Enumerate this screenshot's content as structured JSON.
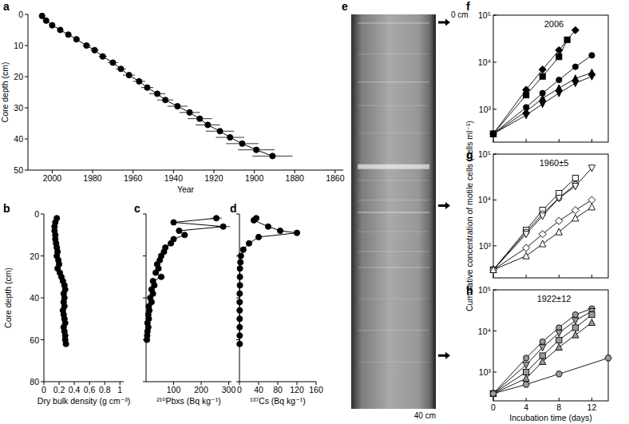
{
  "chart_data": [
    {
      "type": "line",
      "panel": "a",
      "x_label": "Year",
      "y_label": "Core depth (cm)",
      "xlim": [
        2012,
        1856
      ],
      "xticks": [
        2000,
        1980,
        1960,
        1940,
        1920,
        1900,
        1880,
        1860
      ],
      "ylim": [
        50,
        0
      ],
      "yticks": [
        0,
        10,
        20,
        30,
        40,
        50
      ],
      "marker": "circle",
      "line_style": "solid",
      "color": "#000000",
      "x": [
        2005,
        2003,
        2000,
        1996,
        1992,
        1988,
        1983,
        1979,
        1975,
        1970,
        1966,
        1962,
        1957,
        1953,
        1948,
        1944,
        1938,
        1932,
        1927,
        1923,
        1917,
        1912,
        1906,
        1899,
        1891
      ],
      "values": [
        0.5,
        2,
        3.5,
        5,
        6.5,
        8,
        10,
        11.5,
        13.5,
        15.5,
        17.5,
        19.5,
        21.5,
        23.5,
        25.5,
        27.5,
        29.5,
        31.5,
        33.5,
        35.5,
        37.5,
        39.5,
        41.5,
        43.5,
        45.5
      ],
      "x_errors": [
        0.5,
        1,
        1,
        1,
        1.5,
        1.5,
        2,
        2,
        2,
        2.5,
        2.5,
        3,
        3,
        3,
        4,
        4,
        5,
        5,
        6,
        6,
        7,
        7,
        8,
        9,
        10
      ]
    },
    {
      "type": "line",
      "panel": "b",
      "x_label": "Dry bulk density (g cm⁻³)",
      "y_label": "Core depth (cm)",
      "xlim": [
        0,
        1.05
      ],
      "xticks": [
        0,
        0.2,
        0.4,
        0.6,
        0.8,
        1
      ],
      "ylim": [
        80,
        0
      ],
      "yticks": [
        0,
        20,
        40,
        60,
        80
      ],
      "marker": "circle",
      "line_style": "solid",
      "color": "#000000",
      "x": [
        0.17,
        0.15,
        0.14,
        0.14,
        0.15,
        0.15,
        0.16,
        0.17,
        0.18,
        0.17,
        0.19,
        0.2,
        0.18,
        0.21,
        0.23,
        0.25,
        0.27,
        0.28,
        0.26,
        0.27,
        0.26,
        0.27,
        0.25,
        0.26,
        0.27,
        0.28,
        0.26,
        0.27,
        0.28,
        0.28,
        0.29
      ],
      "values": [
        2,
        4,
        6,
        8,
        10,
        12,
        14,
        16,
        18,
        20,
        22,
        24,
        26,
        28,
        30,
        32,
        34,
        36,
        38,
        40,
        42,
        44,
        46,
        48,
        50,
        52,
        54,
        56,
        58,
        60,
        62
      ]
    },
    {
      "type": "line",
      "panel": "c",
      "x_label": "²¹⁰Pbxs (Bq kg⁻¹)",
      "xlim": [
        0,
        310
      ],
      "xticks": [
        100,
        200,
        300
      ],
      "ylim": [
        80,
        0
      ],
      "yticks": [
        0,
        20,
        40,
        60,
        80
      ],
      "tick_labels": "x",
      "marker": "circle",
      "line_style": "solid",
      "color": "#000000",
      "x": [
        255,
        100,
        280,
        120,
        140,
        100,
        90,
        70,
        65,
        55,
        50,
        40,
        45,
        35,
        55,
        25,
        30,
        20,
        25,
        15,
        20,
        10,
        12,
        8,
        10,
        5,
        8,
        5,
        4,
        3
      ],
      "values": [
        2,
        4,
        6,
        8,
        10,
        12,
        14,
        16,
        18,
        20,
        22,
        24,
        26,
        28,
        30,
        32,
        34,
        36,
        38,
        40,
        42,
        44,
        46,
        48,
        50,
        52,
        54,
        56,
        58,
        60
      ],
      "x_errors": [
        20,
        10,
        25,
        12,
        12,
        10,
        10,
        8,
        8,
        8,
        8,
        6,
        8,
        6,
        12,
        6,
        6,
        5,
        6,
        5,
        5,
        5,
        5,
        4,
        4,
        4,
        4,
        4,
        3,
        3
      ]
    },
    {
      "type": "line",
      "panel": "d",
      "x_label": "¹³⁷Cs (Bq kg⁻¹)",
      "xlim": [
        0,
        160
      ],
      "xticks": [
        0,
        40,
        80,
        120,
        160
      ],
      "ylim": [
        80,
        0
      ],
      "yticks": [
        0,
        20,
        40,
        60,
        80
      ],
      "tick_labels": "x",
      "marker": "circle",
      "line_style": "solid",
      "color": "#000000",
      "x": [
        35,
        30,
        60,
        85,
        120,
        40,
        20,
        8,
        3,
        2,
        1,
        1,
        1,
        0.5,
        0.5,
        0.5,
        0.5,
        0.5,
        0.5,
        0.5
      ],
      "values": [
        2,
        3,
        6,
        8,
        9,
        11,
        14,
        17,
        20,
        23,
        26,
        30,
        34,
        38,
        42,
        46,
        50,
        54,
        58,
        62
      ]
    },
    {
      "type": "image",
      "panel": "e",
      "top_label": "0 cm",
      "bottom_label": "40 cm",
      "ylim": [
        40,
        0
      ],
      "arrows": [
        0.8,
        19.4,
        34.6
      ]
    },
    {
      "type": "line",
      "panel": "f",
      "title": "2006",
      "log": "y",
      "tick_labels": "y",
      "xlim": [
        0,
        14
      ],
      "xticks": [
        0,
        4,
        8,
        12
      ],
      "ylim": [
        200,
        100000
      ],
      "yticks": [
        {
          "value": 1000,
          "label": "10³"
        },
        {
          "value": 10000,
          "label": "10⁴"
        },
        {
          "value": 100000,
          "label": "10⁵"
        }
      ],
      "series": [
        {
          "color": "#000000",
          "marker": "diamond",
          "x": [
            0,
            4,
            6,
            8,
            10
          ],
          "values": [
            300,
            2600,
            7000,
            18000,
            48000
          ]
        },
        {
          "color": "#000000",
          "marker": "square",
          "x": [
            0,
            4,
            6,
            8,
            9
          ],
          "values": [
            300,
            2000,
            5000,
            13000,
            30000
          ]
        },
        {
          "color": "#000000",
          "marker": "circle",
          "x": [
            0,
            4,
            6,
            8,
            10,
            12
          ],
          "values": [
            300,
            1100,
            2200,
            4200,
            8000,
            14000
          ]
        },
        {
          "color": "#000000",
          "marker": "triangle-up",
          "x": [
            0,
            4,
            6,
            8,
            10,
            12
          ],
          "values": [
            300,
            900,
            1700,
            2800,
            4500,
            6000
          ]
        },
        {
          "color": "#000000",
          "marker": "triangle-down",
          "x": [
            0,
            4,
            6,
            8,
            10,
            12
          ],
          "values": [
            300,
            750,
            1300,
            2200,
            3600,
            5000
          ]
        }
      ]
    },
    {
      "type": "line",
      "panel": "g",
      "title": "1960±5",
      "log": "y",
      "tick_labels": "y",
      "y_label": "Cumulative concentration of motile cells (cells ml⁻¹)",
      "xlim": [
        0,
        14
      ],
      "xticks": [
        0,
        4,
        8,
        12
      ],
      "ylim": [
        200,
        100000
      ],
      "yticks": [
        {
          "value": 1000,
          "label": "10³"
        },
        {
          "value": 10000,
          "label": "10⁴"
        },
        {
          "value": 100000,
          "label": "10⁵"
        }
      ],
      "series": [
        {
          "color": "#ffffff",
          "marker": "square",
          "x": [
            0,
            4,
            6,
            8,
            10
          ],
          "values": [
            300,
            2200,
            6000,
            14000,
            30000
          ]
        },
        {
          "color": "#ffffff",
          "marker": "circle",
          "x": [
            0,
            4,
            6,
            8,
            10
          ],
          "values": [
            300,
            2000,
            5000,
            11000,
            22000
          ]
        },
        {
          "color": "#ffffff",
          "marker": "triangle-down",
          "x": [
            0,
            4,
            6,
            8,
            10,
            12
          ],
          "values": [
            300,
            1800,
            4500,
            11000,
            20000,
            50000
          ]
        },
        {
          "color": "#ffffff",
          "marker": "diamond",
          "x": [
            0,
            4,
            6,
            8,
            10,
            12
          ],
          "values": [
            300,
            900,
            1800,
            3500,
            6000,
            10000
          ]
        },
        {
          "color": "#ffffff",
          "marker": "triangle-up",
          "x": [
            0,
            4,
            6,
            8,
            10,
            12
          ],
          "values": [
            300,
            600,
            1100,
            2000,
            4000,
            7000
          ]
        }
      ]
    },
    {
      "type": "line",
      "panel": "h",
      "title": "1922±12",
      "log": "y",
      "x_label": "Incubation time (days)",
      "xlim": [
        0,
        14
      ],
      "xticks": [
        0,
        4,
        8,
        12
      ],
      "ylim": [
        200,
        100000
      ],
      "yticks": [
        {
          "value": 1000,
          "label": "10³"
        },
        {
          "value": 10000,
          "label": "10⁴"
        },
        {
          "value": 100000,
          "label": "10⁵"
        }
      ],
      "series": [
        {
          "color": "#999999",
          "marker": "circle",
          "x": [
            0,
            4,
            6,
            8,
            10,
            12
          ],
          "values": [
            300,
            2200,
            5500,
            12000,
            25000,
            35000
          ]
        },
        {
          "color": "#999999",
          "marker": "triangle-down",
          "x": [
            0,
            4,
            6,
            8,
            10,
            12
          ],
          "values": [
            300,
            1500,
            4000,
            9000,
            18000,
            30000
          ]
        },
        {
          "color": "#999999",
          "marker": "square",
          "x": [
            0,
            4,
            6,
            8,
            10,
            12
          ],
          "values": [
            300,
            1000,
            2500,
            6000,
            12000,
            25000
          ]
        },
        {
          "color": "#999999",
          "marker": "triangle-up",
          "x": [
            0,
            4,
            6,
            8,
            10,
            12
          ],
          "values": [
            300,
            700,
            1800,
            4000,
            8000,
            16000
          ]
        },
        {
          "color": "#999999",
          "marker": "hexagon",
          "x": [
            0,
            4,
            8,
            14
          ],
          "values": [
            300,
            500,
            900,
            2200
          ]
        }
      ]
    }
  ]
}
